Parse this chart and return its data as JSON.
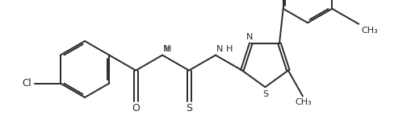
{
  "background_color": "#ffffff",
  "line_color": "#2a2a2a",
  "line_width": 1.4,
  "figsize": [
    5.09,
    1.64
  ],
  "dpi": 100,
  "xlim": [
    0.0,
    5.09
  ],
  "ylim": [
    0.0,
    1.64
  ]
}
